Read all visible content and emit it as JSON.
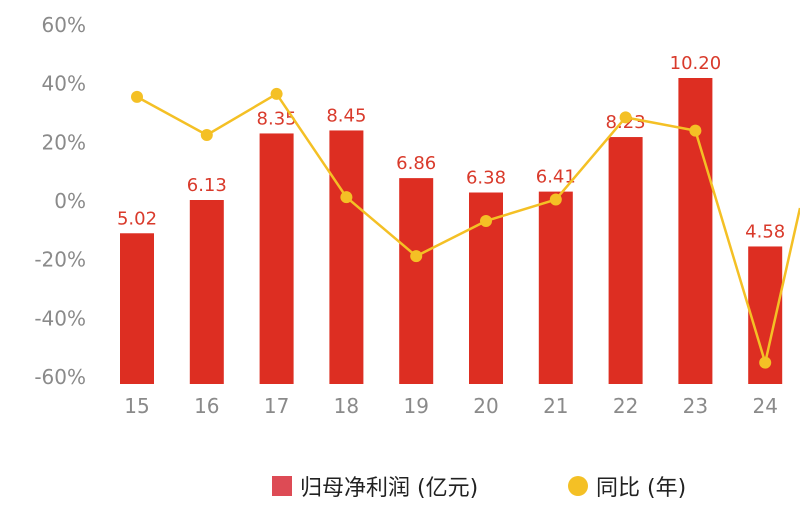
{
  "chart_data": {
    "type": "bar",
    "categories": [
      "15",
      "16",
      "17",
      "18",
      "19",
      "20",
      "21",
      "22",
      "23",
      "24"
    ],
    "series": [
      {
        "name": "归母净利润 (亿元)",
        "type": "bar",
        "axis": "left",
        "values": [
          5.02,
          6.13,
          8.35,
          8.45,
          6.86,
          6.38,
          6.41,
          8.23,
          10.2,
          4.58
        ],
        "labels": [
          "5.02",
          "6.13",
          "8.35",
          "8.45",
          "6.86",
          "6.38",
          "6.41",
          "8.23",
          "10.20",
          "4.58"
        ],
        "color": "#dd2e22"
      },
      {
        "name": "同比 (年)",
        "type": "line",
        "axis": "right",
        "values": [
          35.5,
          22.5,
          36.5,
          1.3,
          -18.8,
          -6.8,
          0.5,
          28.5,
          24.0,
          -55.1
        ],
        "color": "#f4c025"
      }
    ],
    "y_ticks": [
      "60%",
      "40%",
      "20%",
      "0%",
      "-20%",
      "-40%",
      "-60%"
    ],
    "ylim": [
      -60,
      60
    ],
    "bar_axis_range": [
      6.13,
      10.2,
      4.58
    ],
    "grid": false,
    "legend_position": "bottom-center"
  },
  "legend": {
    "bar_label": "归母净利润 (亿元)",
    "line_label": "同比 (年)"
  }
}
